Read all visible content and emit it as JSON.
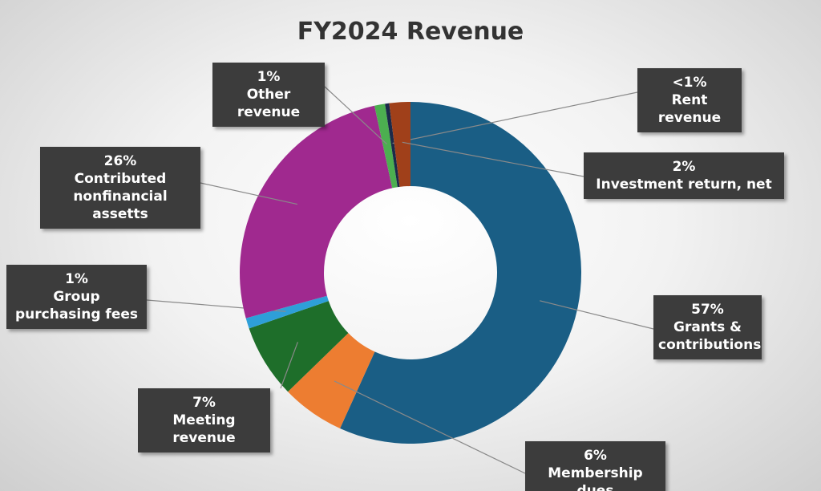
{
  "chart_data": {
    "type": "donut",
    "title": "FY2024 Revenue",
    "categories": [
      "Grants & contributions",
      "Membership dues",
      "Meeting revenue",
      "Group purchasing fees",
      "Contributed nonfinancial assetts",
      "Other revenue",
      "Rent revenue",
      "Investment return, net"
    ],
    "values": [
      57,
      6,
      7,
      1,
      26,
      1,
      0.4,
      2
    ],
    "value_labels": [
      "57%",
      "6%",
      "7%",
      "1%",
      "26%",
      "1%",
      "<1%",
      "2%"
    ],
    "colors": [
      "#1a5e85",
      "#ed7d31",
      "#1e6e2a",
      "#2e9fd8",
      "#a0298f",
      "#4caf50",
      "#1b2a4a",
      "#a0401a"
    ]
  }
}
